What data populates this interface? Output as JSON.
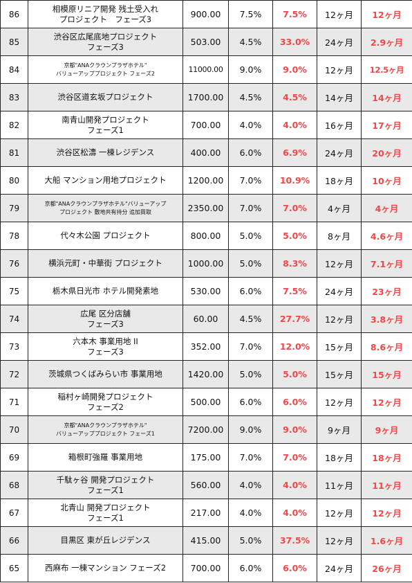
{
  "rows": [
    {
      "no": "86",
      "lines": [
        "相模原リニア開発 残土受入れ",
        "プロジェクト　フェーズ3"
      ],
      "amount": "900.00",
      "rate": "7.5%",
      "actual": "7.5%",
      "planned": "12ヶ月",
      "result": "12ヶ月"
    },
    {
      "no": "85",
      "lines": [
        "渋谷区広尾底地プロジェクト",
        "フェーズ3"
      ],
      "amount": "503.00",
      "rate": "4.5%",
      "actual": "33.0%",
      "planned": "24ヶ月",
      "result": "2.9ヶ月"
    },
    {
      "no": "84",
      "lines": [
        "京都\"ANAクラウンプラザホテル\"",
        "バリューアッププロジェクト フェーズ2"
      ],
      "small": true,
      "amount": "11000.00",
      "rate": "9.0%",
      "actual": "9.0%",
      "planned": "12ヶ月",
      "result": "12.5ヶ月"
    },
    {
      "no": "83",
      "lines": [
        "渋谷区道玄坂プロジェクト"
      ],
      "amount": "1700.00",
      "rate": "4.5%",
      "actual": "4.5%",
      "planned": "14ヶ月",
      "result": "14ヶ月"
    },
    {
      "no": "82",
      "lines": [
        "南青山開発プロジェクト",
        "フェーズ1"
      ],
      "amount": "700.00",
      "rate": "4.0%",
      "actual": "4.0%",
      "planned": "16ヶ月",
      "result": "17ヶ月"
    },
    {
      "no": "81",
      "lines": [
        "渋谷区松濤 一棟レジデンス"
      ],
      "amount": "400.00",
      "rate": "6.0%",
      "actual": "6.9%",
      "planned": "24ヶ月",
      "result": "20ヶ月"
    },
    {
      "no": "80",
      "lines": [
        "大船 マンション用地プロジェクト"
      ],
      "amount": "1200.00",
      "rate": "7.0%",
      "actual": "10.9%",
      "planned": "18ヶ月",
      "result": "10ヶ月"
    },
    {
      "no": "79",
      "lines": [
        "京都\"ANAクラウンプラザホテル\"バリューアップ",
        "プロジェクト 敷地共有持分 追加買取"
      ],
      "small": true,
      "amount": "2350.00",
      "rate": "7.0%",
      "actual": "7.0%",
      "planned": "4ヶ月",
      "result": "4ヶ月"
    },
    {
      "no": "78",
      "lines": [
        "代々木公園 プロジェクト"
      ],
      "amount": "800.00",
      "rate": "5.0%",
      "actual": "5.0%",
      "planned": "8ヶ月",
      "result": "4.6ヶ月"
    },
    {
      "no": "76",
      "lines": [
        "横浜元町・中華街 プロジェクト"
      ],
      "amount": "1000.00",
      "rate": "5.0%",
      "actual": "8.3%",
      "planned": "12ヶ月",
      "result": "7.1ヶ月"
    },
    {
      "no": "75",
      "lines": [
        "栃木県日光市 ホテル開発素地"
      ],
      "amount": "530.00",
      "rate": "6.0%",
      "actual": "7.5%",
      "planned": "24ヶ月",
      "result": "23ヶ月"
    },
    {
      "no": "74",
      "lines": [
        "広尾 区分店舗",
        "フェーズ3"
      ],
      "amount": "60.00",
      "rate": "4.5%",
      "actual": "27.7%",
      "planned": "12ヶ月",
      "result": "3.8ヶ月"
    },
    {
      "no": "73",
      "lines": [
        "六本木 事業用地 II",
        "フェーズ3"
      ],
      "amount": "352.00",
      "rate": "7.0%",
      "actual": "12.0%",
      "planned": "15ヶ月",
      "result": "8.6ヶ月"
    },
    {
      "no": "72",
      "lines": [
        "茨城県つくばみらい市 事業用地"
      ],
      "amount": "1420.00",
      "rate": "5.0%",
      "actual": "5.0%",
      "planned": "15ヶ月",
      "result": "15ヶ月"
    },
    {
      "no": "71",
      "lines": [
        "稲村ヶ崎開発プロジェクト",
        "フェーズ2"
      ],
      "amount": "500.00",
      "rate": "6.0%",
      "actual": "6.0%",
      "planned": "12ヶ月",
      "result": "12ヶ月"
    },
    {
      "no": "70",
      "lines": [
        "京都\"ANAクラウンプラザホテル\"",
        "バリューアッププロジェクト フェーズ1"
      ],
      "small": true,
      "amount": "7200.00",
      "rate": "9.0%",
      "actual": "9.0%",
      "planned": "9ヶ月",
      "result": "9ヶ月"
    },
    {
      "no": "69",
      "lines": [
        "箱根町強羅 事業用地"
      ],
      "amount": "175.00",
      "rate": "7.0%",
      "actual": "7.0%",
      "planned": "18ヶ月",
      "result": "18ヶ月"
    },
    {
      "no": "68",
      "lines": [
        "千駄ヶ谷 開発プロジェクト",
        "フェーズ1"
      ],
      "amount": "560.00",
      "rate": "4.0%",
      "actual": "4.0%",
      "planned": "11ヶ月",
      "result": "11ヶ月"
    },
    {
      "no": "67",
      "lines": [
        "北青山 開発プロジェクト",
        "フェーズ1"
      ],
      "amount": "217.00",
      "rate": "4.0%",
      "actual": "4.0%",
      "planned": "12ヶ月",
      "result": "12ヶ月"
    },
    {
      "no": "66",
      "lines": [
        "目黒区 東が丘レジデンス"
      ],
      "amount": "415.00",
      "rate": "5.0%",
      "actual": "37.5%",
      "planned": "12ヶ月",
      "result": "1.6ヶ月"
    },
    {
      "no": "65",
      "lines": [
        "西麻布 一棟マンション フェーズ2"
      ],
      "amount": "700.00",
      "rate": "6.0%",
      "actual": "6.0%",
      "planned": "24ヶ月",
      "result": "26ヶ月"
    }
  ],
  "colors": {
    "accent_red": "#f04848",
    "shade": "#e9e9e9",
    "border": "#222222"
  }
}
